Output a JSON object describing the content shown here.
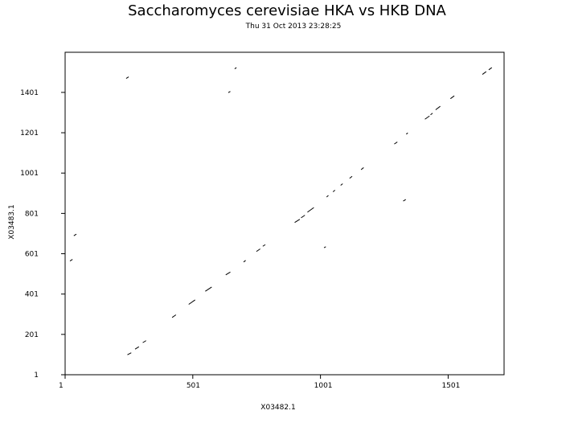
{
  "chart_data": {
    "type": "scatter",
    "title": "Saccharomyces cerevisiae HKA vs HKB DNA",
    "subtitle": "Thu 31 Oct 2013 23:28:25",
    "xlabel": "X03482.1",
    "ylabel": "X03483.1",
    "xlim": [
      1,
      1720
    ],
    "ylim": [
      1,
      1600
    ],
    "x_ticks": [
      1,
      501,
      1001,
      1501
    ],
    "y_ticks": [
      1,
      201,
      401,
      601,
      801,
      1001,
      1201,
      1401
    ],
    "grid": false,
    "segments": [
      {
        "x1": 245,
        "y1": 100,
        "x2": 260,
        "y2": 110
      },
      {
        "x1": 275,
        "y1": 128,
        "x2": 290,
        "y2": 140
      },
      {
        "x1": 305,
        "y1": 160,
        "x2": 318,
        "y2": 170
      },
      {
        "x1": 420,
        "y1": 285,
        "x2": 435,
        "y2": 298
      },
      {
        "x1": 485,
        "y1": 350,
        "x2": 510,
        "y2": 372
      },
      {
        "x1": 550,
        "y1": 415,
        "x2": 575,
        "y2": 436
      },
      {
        "x1": 630,
        "y1": 496,
        "x2": 648,
        "y2": 510
      },
      {
        "x1": 700,
        "y1": 560,
        "x2": 708,
        "y2": 568
      },
      {
        "x1": 750,
        "y1": 612,
        "x2": 765,
        "y2": 625
      },
      {
        "x1": 775,
        "y1": 638,
        "x2": 785,
        "y2": 646
      },
      {
        "x1": 900,
        "y1": 756,
        "x2": 920,
        "y2": 772
      },
      {
        "x1": 925,
        "y1": 779,
        "x2": 940,
        "y2": 792
      },
      {
        "x1": 950,
        "y1": 807,
        "x2": 975,
        "y2": 830
      },
      {
        "x1": 1015,
        "y1": 631,
        "x2": 1022,
        "y2": 636
      },
      {
        "x1": 1025,
        "y1": 882,
        "x2": 1032,
        "y2": 890
      },
      {
        "x1": 1050,
        "y1": 908,
        "x2": 1058,
        "y2": 916
      },
      {
        "x1": 1080,
        "y1": 940,
        "x2": 1088,
        "y2": 948
      },
      {
        "x1": 1115,
        "y1": 975,
        "x2": 1125,
        "y2": 985
      },
      {
        "x1": 1160,
        "y1": 1018,
        "x2": 1170,
        "y2": 1028
      },
      {
        "x1": 1290,
        "y1": 1145,
        "x2": 1302,
        "y2": 1155
      },
      {
        "x1": 1325,
        "y1": 862,
        "x2": 1335,
        "y2": 870
      },
      {
        "x1": 1337,
        "y1": 1194,
        "x2": 1343,
        "y2": 1200
      },
      {
        "x1": 1410,
        "y1": 1268,
        "x2": 1428,
        "y2": 1284
      },
      {
        "x1": 1432,
        "y1": 1290,
        "x2": 1440,
        "y2": 1298
      },
      {
        "x1": 1452,
        "y1": 1315,
        "x2": 1470,
        "y2": 1332
      },
      {
        "x1": 1510,
        "y1": 1370,
        "x2": 1525,
        "y2": 1384
      },
      {
        "x1": 1635,
        "y1": 1490,
        "x2": 1650,
        "y2": 1504
      },
      {
        "x1": 1660,
        "y1": 1513,
        "x2": 1672,
        "y2": 1524
      },
      {
        "x1": 20,
        "y1": 565,
        "x2": 30,
        "y2": 573
      },
      {
        "x1": 35,
        "y1": 690,
        "x2": 45,
        "y2": 698
      },
      {
        "x1": 240,
        "y1": 1470,
        "x2": 250,
        "y2": 1478
      },
      {
        "x1": 640,
        "y1": 1400,
        "x2": 648,
        "y2": 1406
      },
      {
        "x1": 665,
        "y1": 1518,
        "x2": 672,
        "y2": 1524
      }
    ]
  }
}
